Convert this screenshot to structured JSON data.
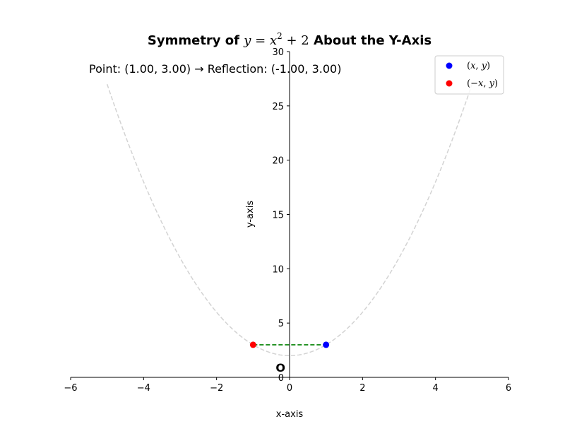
{
  "chart_data": {
    "type": "scatter",
    "title": {
      "prefix": "Symmetry of ",
      "math_var": "y",
      "math_eq": " = ",
      "math_x": "x",
      "math_sup": "2",
      "math_rest": " + 2",
      "suffix": " About the Y-Axis"
    },
    "xlabel": "x-axis",
    "ylabel": "y-axis",
    "xlim": [
      -6,
      6
    ],
    "ylim": [
      0,
      30
    ],
    "xticks": [
      -6,
      -4,
      -2,
      0,
      2,
      4,
      6
    ],
    "yticks": [
      5,
      10,
      15,
      20,
      25,
      30
    ],
    "x_tick_labels": [
      "−6",
      "−4",
      "−2",
      "0",
      "2",
      "4",
      "6"
    ],
    "y_tick_labels": [
      "5",
      "10",
      "15",
      "20",
      "25",
      "30"
    ],
    "y_zero_label": "0",
    "origin_label": "O",
    "annotation": "Point: (1.00, 3.00) → Reflection: (-1.00, 3.00)",
    "grid": false,
    "legend_position": "top-right",
    "curve": {
      "function": "x^2 + 2",
      "x_range": [
        -5,
        5
      ],
      "color": "#d3d3d3",
      "style": "dashed"
    },
    "connector": {
      "from": [
        -1,
        3
      ],
      "to": [
        1,
        3
      ],
      "color": "#008000",
      "style": "dashed"
    },
    "series": [
      {
        "name": "(x, y)",
        "name_parts": [
          "(",
          "x",
          ", ",
          "y",
          ")"
        ],
        "color": "#0000ff",
        "points": [
          [
            1,
            3
          ]
        ]
      },
      {
        "name": "(−x, y)",
        "name_parts": [
          "(−",
          "x",
          ", ",
          "y",
          ")"
        ],
        "color": "#ff0000",
        "points": [
          [
            -1,
            3
          ]
        ]
      }
    ]
  }
}
